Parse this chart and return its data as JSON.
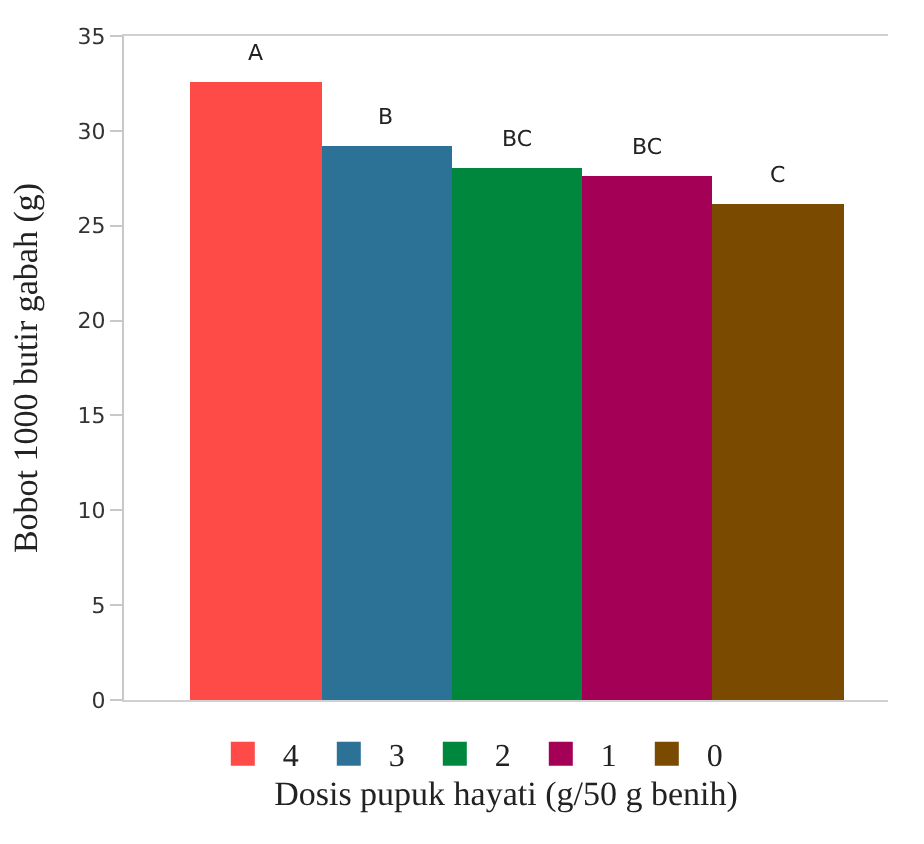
{
  "chart_data": {
    "type": "bar",
    "xlabel": "Dosis pupuk hayati (g/50 g benih)",
    "ylabel": "Bobot 1000 butir gabah (g)",
    "categories": [
      null
    ],
    "series": [
      {
        "name": "4",
        "color": "#ff4b48",
        "values": [
          32.6
        ]
      },
      {
        "name": "3",
        "color": "#2c7196",
        "values": [
          29.2
        ]
      },
      {
        "name": "2",
        "color": "#00873e",
        "values": [
          28.0
        ]
      },
      {
        "name": "1",
        "color": "#a30056",
        "values": [
          27.6
        ]
      },
      {
        "name": "0",
        "color": "#7a4a00",
        "values": [
          26.1
        ]
      }
    ],
    "annotations": [
      {
        "text": "A",
        "y": 32.6
      },
      {
        "text": "B",
        "y": 29.2
      },
      {
        "text": "BC",
        "y": 28.0
      },
      {
        "text": "BC",
        "y": 27.6
      },
      {
        "text": "C",
        "y": 26.1
      }
    ],
    "ylim": [
      0,
      35
    ],
    "yticks": [
      0,
      5,
      10,
      15,
      20,
      25,
      30,
      35
    ],
    "legend": "bottom",
    "tick_labels": "y"
  }
}
